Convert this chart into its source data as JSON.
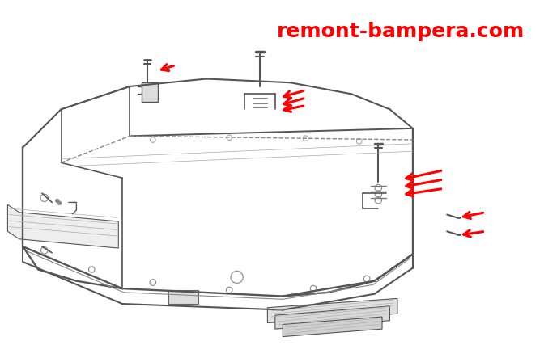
{
  "title": "remont-bampera.com",
  "title_color": "#ff0000",
  "title_fontsize": 18,
  "background_color": "#ffffff",
  "line_color": "#555555",
  "line_width": 1.2,
  "arrow_color": "#ff0000",
  "fig_width": 6.72,
  "fig_height": 4.48,
  "dpi": 100
}
